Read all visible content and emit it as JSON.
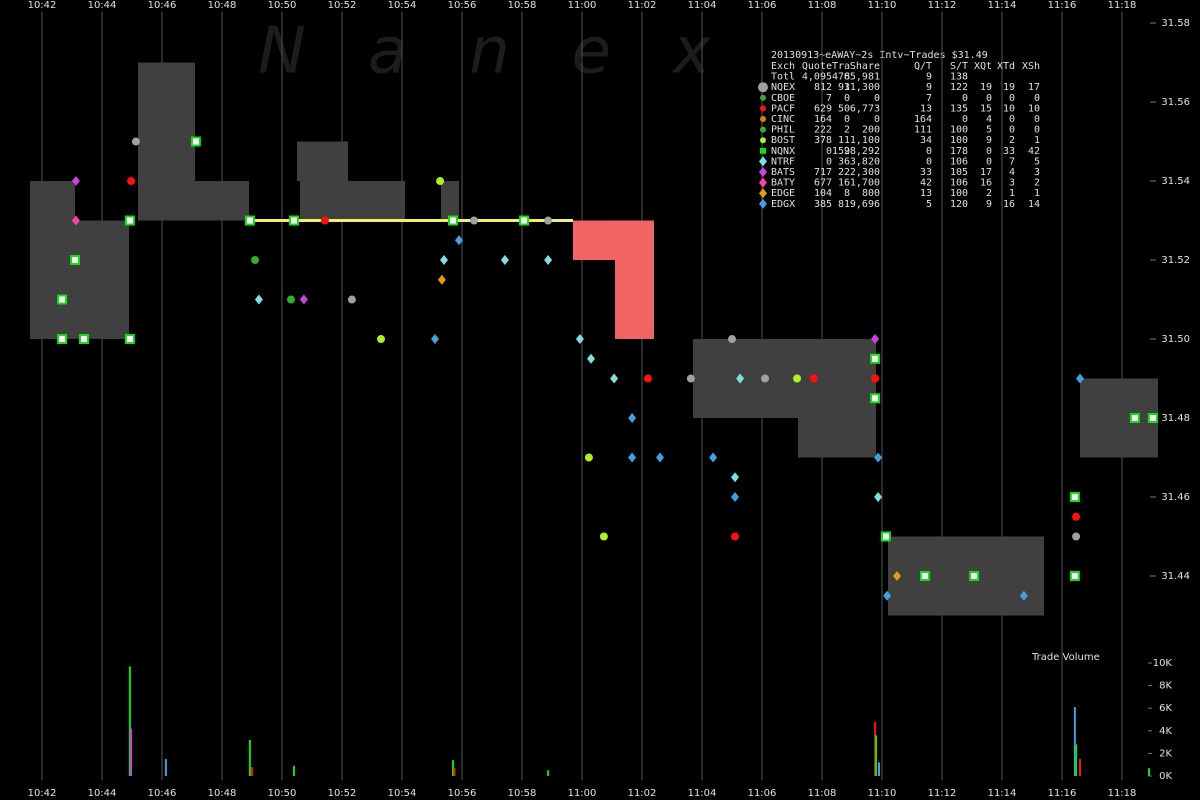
{
  "chart_data": {
    "type": "scatter",
    "title": "20130913~eAWAY~2s Intv~Trades $31.49",
    "watermark": "Nanex",
    "volume_title": "Trade Volume",
    "xlim": [
      640.6,
      680.6
    ],
    "xticks": [
      {
        "value": 642,
        "label": "10:42"
      },
      {
        "value": 644,
        "label": "10:44"
      },
      {
        "value": 646,
        "label": "10:46"
      },
      {
        "value": 648,
        "label": "10:48"
      },
      {
        "value": 650,
        "label": "10:50"
      },
      {
        "value": 652,
        "label": "10:52"
      },
      {
        "value": 654,
        "label": "10:54"
      },
      {
        "value": 656,
        "label": "10:56"
      },
      {
        "value": 658,
        "label": "10:58"
      },
      {
        "value": 660,
        "label": "11:00"
      },
      {
        "value": 662,
        "label": "11:02"
      },
      {
        "value": 664,
        "label": "11:04"
      },
      {
        "value": 666,
        "label": "11:06"
      },
      {
        "value": 668,
        "label": "11:08"
      },
      {
        "value": 670,
        "label": "11:10"
      },
      {
        "value": 672,
        "label": "11:12"
      },
      {
        "value": 674,
        "label": "11:14"
      },
      {
        "value": 676,
        "label": "11:16"
      },
      {
        "value": 678,
        "label": "11:18"
      }
    ],
    "ylim": [
      31.42,
      31.5833
    ],
    "yticks": [
      31.44,
      31.46,
      31.48,
      {
        "value": 31.5,
        "label": "31.50"
      },
      31.52,
      31.54,
      31.56,
      31.58
    ],
    "y2lim": [
      0,
      10000
    ],
    "y2ticks": [
      {
        "value": 0,
        "label": "0K"
      },
      {
        "value": 2000,
        "label": "2K"
      },
      {
        "value": 4000,
        "label": "4K"
      },
      {
        "value": 6000,
        "label": "6K"
      },
      {
        "value": 8000,
        "label": "8K"
      },
      {
        "value": 10000,
        "label": "10K"
      }
    ],
    "grid": true,
    "legend_header": [
      "Exch",
      "Quote",
      "Tra",
      "Share",
      "Q/T",
      "S/T",
      "XQt",
      "XTd",
      "XSh"
    ],
    "legend_total": [
      "Totl",
      "4,095",
      "478",
      "65,981",
      "9",
      "138"
    ],
    "quotes": {
      "x0": [
        641.6,
        643.1,
        645.2,
        647.1,
        650.5,
        650.6,
        655.3,
        659.7,
        661.1,
        663.7,
        667.2,
        670.2,
        676.6
      ],
      "x1": [
        643.1,
        644.9,
        647.1,
        648.9,
        652.2,
        654.1,
        655.9,
        662.4,
        662.4,
        669.8,
        669.8,
        675.4,
        679.2
      ],
      "low": [
        31.5,
        31.5,
        31.53,
        31.53,
        31.54,
        31.53,
        31.53,
        31.52,
        31.5,
        31.48,
        31.47,
        31.43,
        31.47
      ],
      "high": [
        31.54,
        31.53,
        31.57,
        31.54,
        31.55,
        31.54,
        31.54,
        31.53,
        31.53,
        31.5,
        31.48,
        31.45,
        31.49
      ],
      "colors": [
        "#404040",
        "#404040",
        "#404040",
        "#404040",
        "#404040",
        "#404040",
        "#404040",
        "#f06464",
        "#f06464",
        "#404040",
        "#404040",
        "#404040",
        "#404040"
      ]
    },
    "trade_line": {
      "color": "#f0f070",
      "x": [
        648.93,
        659.7
      ],
      "values": [
        31.53,
        31.53
      ]
    },
    "series": [
      {
        "name": "NQEX",
        "color": "#a0a0a0",
        "marker": "circle",
        "x": [
          645.13,
          652.33,
          656.4,
          658.87,
          663.63,
          665.0,
          666.1,
          676.47
        ],
        "values": [
          31.55,
          31.51,
          31.53,
          31.53,
          31.49,
          31.5,
          31.49,
          31.45
        ],
        "stats": [
          "812",
          "93",
          "11,300",
          "9",
          "122",
          "19",
          "19",
          "17"
        ]
      },
      {
        "name": "CBOE",
        "color": "#40a040",
        "marker": "circle",
        "x": [],
        "values": [],
        "stats": [
          "7",
          "0",
          "0",
          "7",
          "0",
          "0",
          "0",
          "0"
        ]
      },
      {
        "name": "PACF",
        "color": "#ff1010",
        "marker": "circle",
        "x": [
          644.97,
          650.4,
          651.43,
          662.2,
          665.1,
          667.73,
          669.77,
          676.47
        ],
        "values": [
          31.54,
          31.53,
          31.53,
          31.49,
          31.45,
          31.49,
          31.49,
          31.455
        ],
        "stats": [
          "629",
          "50",
          "6,773",
          "13",
          "135",
          "15",
          "10",
          "10"
        ]
      },
      {
        "name": "CINC",
        "color": "#e08000",
        "marker": "circle",
        "x": [],
        "values": [],
        "stats": [
          "164",
          "0",
          "0",
          "164",
          "0",
          "4",
          "0",
          "0"
        ]
      },
      {
        "name": "PHIL",
        "color": "#30b030",
        "marker": "circle",
        "x": [
          649.1,
          650.3
        ],
        "values": [
          31.52,
          31.51
        ],
        "stats": [
          "222",
          "2",
          "200",
          "111",
          "100",
          "5",
          "0",
          "0"
        ]
      },
      {
        "name": "BOST",
        "color": "#b0f020",
        "marker": "circle",
        "x": [
          655.27,
          653.3,
          660.23,
          660.73,
          667.17
        ],
        "values": [
          31.54,
          31.5,
          31.47,
          31.45,
          31.49
        ],
        "stats": [
          "378",
          "11",
          "1,100",
          "34",
          "100",
          "9",
          "2",
          "1"
        ]
      },
      {
        "name": "NQNX",
        "color": "#10e010",
        "marker": "square",
        "x": [
          644.93,
          643.1,
          642.67,
          642.67,
          643.4,
          644.93,
          647.13,
          648.93,
          650.4,
          655.7,
          658.07,
          669.77,
          669.77,
          670.13,
          671.43,
          673.07,
          676.43,
          678.43,
          679.03,
          676.43
        ],
        "values": [
          31.53,
          31.52,
          31.51,
          31.5,
          31.5,
          31.5,
          31.55,
          31.53,
          31.53,
          31.53,
          31.53,
          31.495,
          31.485,
          31.45,
          31.44,
          31.44,
          31.44,
          31.48,
          31.48,
          31.46
        ],
        "stats": [
          "0",
          "159",
          "28,292",
          "0",
          "178",
          "0",
          "33",
          "42"
        ]
      },
      {
        "name": "NTRF",
        "color": "#80e0e0",
        "marker": "diamond",
        "x": [
          649.23,
          655.4,
          657.43,
          658.87,
          659.93,
          660.3,
          661.07,
          665.27,
          665.1,
          669.87
        ],
        "values": [
          31.51,
          31.52,
          31.52,
          31.52,
          31.5,
          31.495,
          31.49,
          31.49,
          31.465,
          31.46
        ],
        "stats": [
          "0",
          "36",
          "3,820",
          "0",
          "106",
          "0",
          "7",
          "5"
        ]
      },
      {
        "name": "BATS",
        "color": "#d040e0",
        "marker": "diamond",
        "x": [
          643.13,
          650.73,
          669.77
        ],
        "values": [
          31.54,
          31.51,
          31.5
        ],
        "stats": [
          "717",
          "22",
          "2,300",
          "33",
          "105",
          "17",
          "4",
          "3"
        ]
      },
      {
        "name": "BATY",
        "color": "#ff40b0",
        "marker": "diamond",
        "x": [
          643.13
        ],
        "values": [
          31.53
        ],
        "stats": [
          "677",
          "16",
          "1,700",
          "42",
          "106",
          "16",
          "3",
          "2"
        ]
      },
      {
        "name": "EDGE",
        "color": "#e0a000",
        "marker": "diamond",
        "x": [
          655.33,
          670.5
        ],
        "values": [
          31.515,
          31.44
        ],
        "stats": [
          "104",
          "8",
          "800",
          "13",
          "100",
          "2",
          "1",
          "1"
        ]
      },
      {
        "name": "EDGX",
        "color": "#40a0e0",
        "marker": "diamond",
        "x": [
          655.9,
          655.1,
          661.67,
          661.67,
          662.6,
          664.37,
          665.1,
          669.87,
          670.17,
          674.73,
          676.6
        ],
        "values": [
          31.525,
          31.5,
          31.48,
          31.47,
          31.47,
          31.47,
          31.46,
          31.47,
          31.435,
          31.435,
          31.49
        ],
        "stats": [
          "385",
          "81",
          "9,696",
          "5",
          "120",
          "9",
          "16",
          "14"
        ]
      }
    ],
    "volume": {
      "x": [
        644.93,
        644.97,
        646.13,
        648.93,
        649.0,
        650.4,
        655.7,
        655.75,
        658.87,
        669.77,
        669.8,
        669.9,
        676.43,
        676.47,
        676.6,
        678.9
      ],
      "values": [
        9700,
        4200,
        1500,
        3200,
        800,
        900,
        1400,
        700,
        500,
        4800,
        3600,
        1200,
        6100,
        2800,
        1500,
        700
      ],
      "colors": [
        "#10e010",
        "#d040e0",
        "#40a0e0",
        "#10e010",
        "#ff1010",
        "#10e010",
        "#10e010",
        "#ff1010",
        "#10e010",
        "#ff1010",
        "#10e010",
        "#40a0e0",
        "#40a0e0",
        "#10e010",
        "#ff1010",
        "#10e010"
      ]
    }
  }
}
